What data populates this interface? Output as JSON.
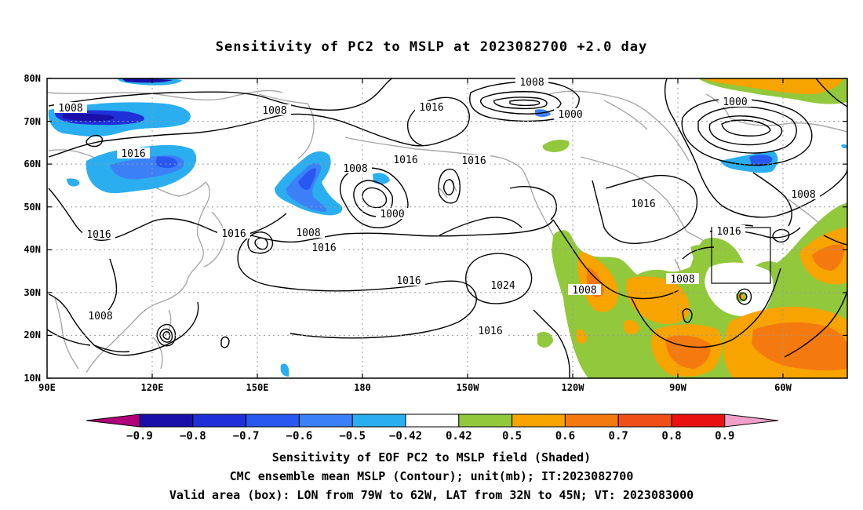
{
  "title": "Sensitivity of PC2 to MSLP at 2023082700 +2.0 day",
  "lat_labels": [
    "80N",
    "70N",
    "60N",
    "50N",
    "40N",
    "30N",
    "20N",
    "10N"
  ],
  "lon_labels": [
    "90E",
    "120E",
    "150E",
    "180",
    "150W",
    "120W",
    "90W",
    "60W"
  ],
  "contour_labels": [
    {
      "text": "1008"
    },
    {
      "text": "1008"
    },
    {
      "text": "1016"
    },
    {
      "text": "1008"
    },
    {
      "text": "1000"
    },
    {
      "text": "1016"
    },
    {
      "text": "1000"
    },
    {
      "text": "1016"
    },
    {
      "text": "1016"
    },
    {
      "text": "1016"
    },
    {
      "text": "1008"
    },
    {
      "text": "1000"
    },
    {
      "text": "1016"
    },
    {
      "text": "1008"
    },
    {
      "text": "1016"
    },
    {
      "text": "1016"
    },
    {
      "text": "1016"
    },
    {
      "text": "1024"
    },
    {
      "text": "1016"
    },
    {
      "text": "1008"
    },
    {
      "text": "1008"
    },
    {
      "text": "1008"
    },
    {
      "text": "1016"
    },
    {
      "text": "1008"
    }
  ],
  "colorbar": {
    "colors": [
      "#b0007a",
      "#1a0fa8",
      "#2030d8",
      "#2858f0",
      "#3c80f8",
      "#2aaef0",
      "#ffffff",
      "#92c83c",
      "#f7a400",
      "#f47a10",
      "#f05018",
      "#e81010",
      "#f0a0c8"
    ],
    "labels": [
      "-0.9",
      "-0.8",
      "-0.7",
      "-0.6",
      "-0.5",
      "-0.42",
      "0.42",
      "0.5",
      "0.6",
      "0.7",
      "0.8",
      "0.9"
    ]
  },
  "caption_lines": [
    "Sensitivity of EOF PC2 to MSLP field (Shaded)",
    "CMC ensemble mean MSLP (Contour); unit(mb); IT:2023082700",
    "Valid area (box): LON from 79W to 62W, LAT from 32N to 45N; VT: 2023083000"
  ]
}
